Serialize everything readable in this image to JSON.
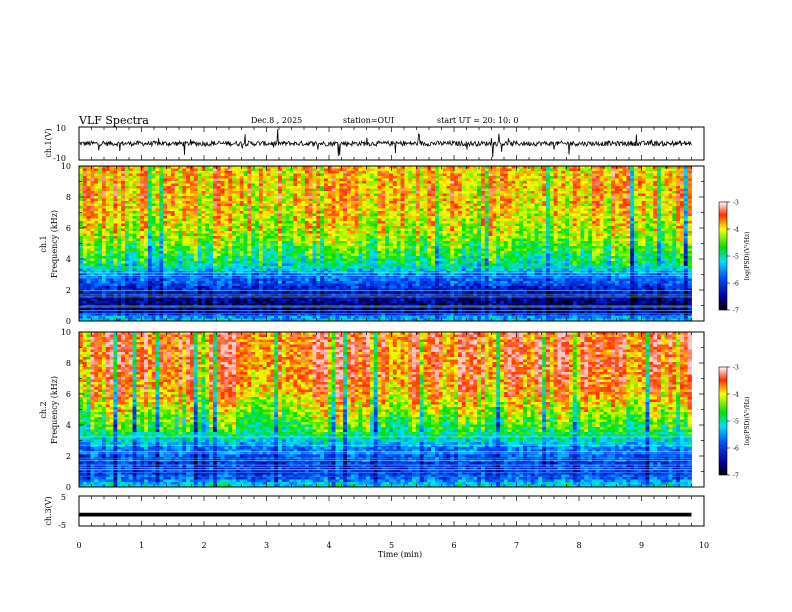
{
  "header": {
    "title": "VLF Spectra",
    "date": "Dec.8  , 2025",
    "station": "station=OUI",
    "start_ut": "start  UT  =   20: 10: 0"
  },
  "chart_data": [
    {
      "type": "line",
      "title": "",
      "xlabel": "",
      "ylabel": "ch.1(V)",
      "xlim": [
        0,
        10
      ],
      "ylim": [
        -10,
        10
      ],
      "y_ticklabels": [
        "-10",
        "10"
      ],
      "trace": {
        "baseline": 0,
        "typical_amplitude": 1.5,
        "spike_amplitude": 5,
        "end_minute": 9.8
      },
      "grid": false
    },
    {
      "type": "heatmap",
      "ylabel": "ch.1 Frequency  (kHz)",
      "xlim": [
        0,
        10
      ],
      "ylim": [
        0,
        10
      ],
      "y_ticklabels": [
        "0",
        "2",
        "4",
        "6",
        "8",
        "10"
      ],
      "data_end_minute": 9.8,
      "colorbar": {
        "range": [
          -7,
          -3
        ],
        "ticklabels": [
          "-7",
          "-6",
          "-5",
          "-4",
          "-3"
        ],
        "label": "log(PSD)(V²/Hz)"
      },
      "log_psd_profile": {
        "freq_khz": [
          0,
          0.3,
          0.6,
          1.0,
          1.5,
          2.0,
          2.5,
          3.0,
          3.5,
          4.0,
          5.0,
          6.0,
          7.0,
          8.0,
          9.0,
          10.0
        ],
        "value": [
          -5.2,
          -5.6,
          -6.6,
          -6.6,
          -6.5,
          -6.2,
          -5.8,
          -5.6,
          -5.0,
          -4.8,
          -4.4,
          -4.1,
          -3.9,
          -3.8,
          -3.8,
          -3.8
        ]
      }
    },
    {
      "type": "heatmap",
      "ylabel": "ch.2 Frequency  (kHz)",
      "xlim": [
        0,
        10
      ],
      "ylim": [
        0,
        10
      ],
      "y_ticklabels": [
        "0",
        "2",
        "4",
        "6",
        "8",
        "10"
      ],
      "data_end_minute": 9.8,
      "colorbar": {
        "range": [
          -7,
          -3
        ],
        "ticklabels": [
          "-7",
          "-6",
          "-5",
          "-4",
          "-3"
        ],
        "label": "log(PSD)(V²/Hz)"
      },
      "log_psd_profile": {
        "freq_khz": [
          0,
          0.3,
          0.6,
          1.0,
          1.5,
          2.0,
          2.5,
          3.0,
          3.5,
          4.0,
          5.0,
          6.0,
          7.0,
          8.0,
          9.0,
          10.0
        ],
        "value": [
          -5.0,
          -5.4,
          -5.8,
          -6.0,
          -6.0,
          -5.8,
          -5.6,
          -5.2,
          -4.8,
          -4.6,
          -4.2,
          -3.8,
          -3.6,
          -3.5,
          -3.5,
          -3.5
        ]
      }
    },
    {
      "type": "line",
      "ylabel": "ch.3(V)",
      "xlabel": "Time  (min)",
      "xlim": [
        0,
        10
      ],
      "ylim": [
        -5,
        5
      ],
      "y_ticklabels": [
        "-5",
        "5"
      ],
      "x_ticklabels": [
        "0",
        "1",
        "2",
        "3",
        "4",
        "5",
        "6",
        "7",
        "8",
        "9",
        "10"
      ],
      "trace": {
        "baseline": -1.2,
        "thickness_volts": 0.5,
        "end_minute": 9.8
      },
      "grid": false
    }
  ]
}
